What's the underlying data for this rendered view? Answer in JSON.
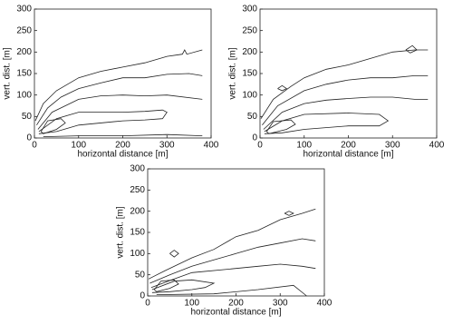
{
  "chart_data": [
    {
      "type": "contour",
      "xlabel": "horizontal distance [m]",
      "ylabel": "vert. dist. [m]",
      "xlim": [
        0,
        400
      ],
      "ylim": [
        0,
        300
      ],
      "xticks": [
        0,
        100,
        200,
        300,
        400
      ],
      "yticks": [
        0,
        50,
        100,
        150,
        200,
        250,
        300
      ],
      "color": "#222222",
      "contours": [
        {
          "x": [
            2,
            20,
            50,
            100,
            150,
            200,
            250,
            300,
            335,
            340,
            345,
            380
          ],
          "y": [
            40,
            80,
            110,
            140,
            155,
            165,
            175,
            190,
            195,
            205,
            195,
            205
          ]
        },
        {
          "x": [
            5,
            30,
            60,
            100,
            150,
            200,
            250,
            300,
            350,
            380
          ],
          "y": [
            30,
            70,
            95,
            115,
            128,
            140,
            140,
            148,
            150,
            145
          ]
        },
        {
          "x": [
            8,
            40,
            100,
            150,
            200,
            250,
            300,
            380
          ],
          "y": [
            20,
            60,
            90,
            98,
            100,
            98,
            100,
            90
          ]
        },
        {
          "x": [
            10,
            50,
            100,
            200,
            250,
            290,
            300,
            290,
            250,
            200,
            100,
            50,
            10
          ],
          "y": [
            15,
            45,
            60,
            60,
            62,
            65,
            60,
            45,
            42,
            40,
            30,
            15,
            10
          ]
        },
        {
          "x": [
            15,
            30,
            60,
            70,
            50,
            20,
            15
          ],
          "y": [
            15,
            40,
            45,
            35,
            20,
            10,
            15
          ]
        },
        {
          "x": [
            20,
            100,
            200,
            300,
            380
          ],
          "y": [
            3,
            5,
            5,
            8,
            5
          ]
        }
      ]
    },
    {
      "type": "contour",
      "xlabel": "horizontal distance [m]",
      "ylabel": "vert. dist. [m]",
      "xlim": [
        0,
        400
      ],
      "ylim": [
        0,
        300
      ],
      "xticks": [
        0,
        100,
        200,
        300,
        400
      ],
      "yticks": [
        0,
        50,
        100,
        150,
        200,
        250,
        300
      ],
      "color": "#222222",
      "contours": [
        {
          "x": [
            2,
            30,
            70,
            100,
            150,
            200,
            250,
            300,
            350,
            380
          ],
          "y": [
            45,
            90,
            120,
            140,
            160,
            170,
            185,
            200,
            205,
            205
          ]
        },
        {
          "x": [
            5,
            40,
            100,
            150,
            200,
            250,
            300,
            350,
            380
          ],
          "y": [
            30,
            75,
            110,
            125,
            135,
            140,
            140,
            145,
            145
          ]
        },
        {
          "x": [
            8,
            50,
            100,
            150,
            200,
            250,
            300,
            350,
            380
          ],
          "y": [
            20,
            60,
            80,
            88,
            92,
            95,
            95,
            90,
            90
          ]
        },
        {
          "x": [
            10,
            50,
            100,
            200,
            270,
            290,
            270,
            200,
            100,
            50,
            10
          ],
          "y": [
            15,
            40,
            55,
            58,
            55,
            40,
            28,
            28,
            20,
            12,
            10
          ]
        },
        {
          "x": [
            15,
            30,
            70,
            80,
            60,
            20,
            15
          ],
          "y": [
            15,
            38,
            42,
            32,
            20,
            10,
            15
          ]
        },
        {
          "x": [
            330,
            345,
            355,
            340,
            330
          ],
          "y": [
            205,
            215,
            205,
            198,
            205
          ]
        },
        {
          "x": [
            40,
            50,
            60,
            50,
            40
          ],
          "y": [
            115,
            122,
            115,
            110,
            115
          ]
        }
      ]
    },
    {
      "type": "contour",
      "xlabel": "horizontal distance [m]",
      "ylabel": "vert. dist. [m]",
      "xlim": [
        0,
        400
      ],
      "ylim": [
        0,
        300
      ],
      "xticks": [
        0,
        100,
        200,
        300,
        400
      ],
      "yticks": [
        0,
        50,
        100,
        150,
        200,
        250,
        300
      ],
      "color": "#222222",
      "contours": [
        {
          "x": [
            2,
            40,
            100,
            150,
            200,
            250,
            300,
            350,
            380
          ],
          "y": [
            40,
            60,
            90,
            110,
            140,
            155,
            180,
            195,
            205
          ]
        },
        {
          "x": [
            5,
            50,
            100,
            150,
            200,
            250,
            300,
            350,
            380
          ],
          "y": [
            30,
            50,
            70,
            85,
            100,
            115,
            125,
            135,
            130
          ]
        },
        {
          "x": [
            8,
            60,
            100,
            200,
            250,
            300,
            350,
            380
          ],
          "y": [
            20,
            40,
            55,
            65,
            70,
            75,
            70,
            65
          ]
        },
        {
          "x": [
            10,
            60,
            100,
            150,
            130,
            100,
            50,
            10
          ],
          "y": [
            15,
            35,
            38,
            30,
            20,
            15,
            10,
            8
          ]
        },
        {
          "x": [
            15,
            30,
            60,
            70,
            50,
            20,
            15
          ],
          "y": [
            15,
            35,
            38,
            28,
            18,
            10,
            15
          ]
        },
        {
          "x": [
            50,
            60,
            70,
            60,
            50
          ],
          "y": [
            100,
            108,
            100,
            92,
            100
          ]
        },
        {
          "x": [
            310,
            320,
            330,
            320,
            310
          ],
          "y": [
            195,
            200,
            195,
            190,
            195
          ]
        },
        {
          "x": [
            20,
            150,
            250,
            330,
            360
          ],
          "y": [
            3,
            5,
            15,
            25,
            0
          ]
        }
      ]
    }
  ]
}
